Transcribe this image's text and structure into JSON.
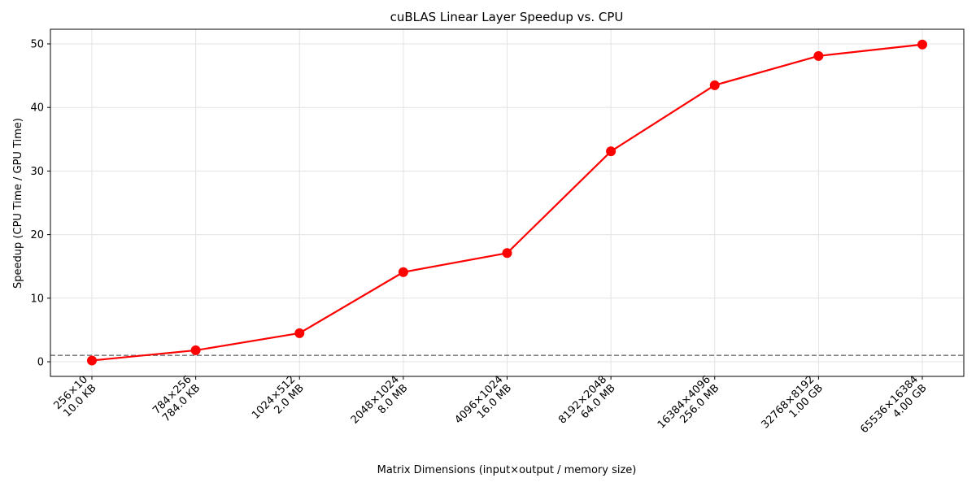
{
  "chart_data": {
    "type": "line",
    "title": "cuBLAS Linear Layer Speedup vs. CPU",
    "xlabel": "Matrix Dimensions (input×output / memory size)",
    "ylabel": "Speedup (CPU Time / GPU Time)",
    "categories": [
      [
        "256×10",
        "10.0 KB"
      ],
      [
        "784×256",
        "784.0 KB"
      ],
      [
        "1024×512",
        "2.0 MB"
      ],
      [
        "2048×1024",
        "8.0 MB"
      ],
      [
        "4096×1024",
        "16.0 MB"
      ],
      [
        "8192×2048",
        "64.0 MB"
      ],
      [
        "16384×4096",
        "256.0 MB"
      ],
      [
        "32768×8192",
        "1.00 GB"
      ],
      [
        "65536×16384",
        "4.00 GB"
      ]
    ],
    "series": [
      {
        "values": [
          0.2,
          1.8,
          4.5,
          14.1,
          17.1,
          33.1,
          43.5,
          48.1,
          49.9
        ],
        "color": "#ff0000",
        "marker": "circle"
      }
    ],
    "reference_line": {
      "y": 1,
      "color": "#808080",
      "style": "dashed"
    },
    "ylim": [
      -2.3,
      52.3
    ],
    "yticks": [
      0,
      10,
      20,
      30,
      40,
      50
    ],
    "grid": true,
    "legend": "none"
  }
}
